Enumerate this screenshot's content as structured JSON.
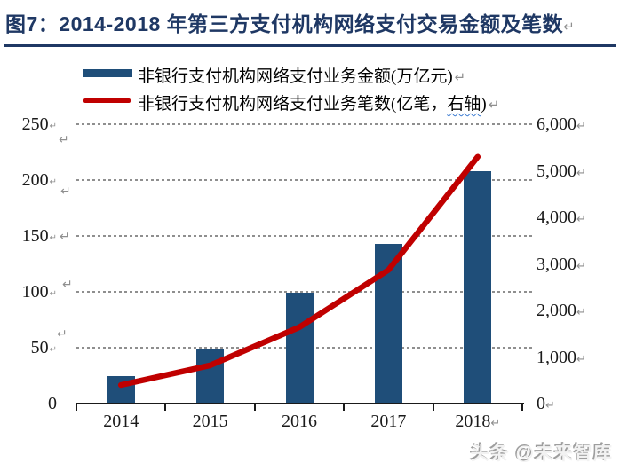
{
  "header": {
    "title": "图7：2014-2018 年第三方支付机构网络支付交易金额及笔数"
  },
  "legend": {
    "items": [
      {
        "label": "非银行支付机构网络支付业务金额(万亿元)",
        "color": "#1F4E79",
        "marker": "bar"
      },
      {
        "label_prefix": "非银行支付机构网络支付业务笔数(亿笔，",
        "label_wavy": "右轴",
        "label_suffix": ")",
        "color": "#C00000",
        "marker": "line"
      }
    ]
  },
  "chart_data": {
    "type": "bar",
    "categories": [
      "2014",
      "2015",
      "2016",
      "2017",
      "2018"
    ],
    "series": [
      {
        "name": "非银行支付机构网络支付业务金额(万亿元)",
        "type": "bar",
        "axis": "left",
        "color": "#1F4E79",
        "values": [
          25,
          49,
          99,
          143,
          208
        ]
      },
      {
        "name": "非银行支付机构网络支付业务笔数(亿笔，右轴)",
        "type": "line",
        "axis": "right",
        "color": "#C00000",
        "values": [
          400,
          820,
          1640,
          2870,
          5300
        ]
      }
    ],
    "left_axis": {
      "range": [
        0,
        250
      ],
      "ticks": [
        0,
        50,
        100,
        150,
        200,
        250
      ],
      "labels": [
        "0",
        "50",
        "100",
        "150",
        "200",
        "250"
      ]
    },
    "right_axis": {
      "range": [
        0,
        6000
      ],
      "ticks": [
        0,
        1000,
        2000,
        3000,
        4000,
        5000,
        6000
      ],
      "labels": [
        "0",
        "1,000",
        "2,000",
        "3,000",
        "4,000",
        "5,000",
        "6,000"
      ]
    },
    "grid": true,
    "legend_position": "top-left",
    "title": "2014-2018 年第三方支付机构网络支付交易金额及笔数"
  },
  "artifacts": {
    "return_mark": "↵"
  },
  "watermark": "头条 @未来智库"
}
